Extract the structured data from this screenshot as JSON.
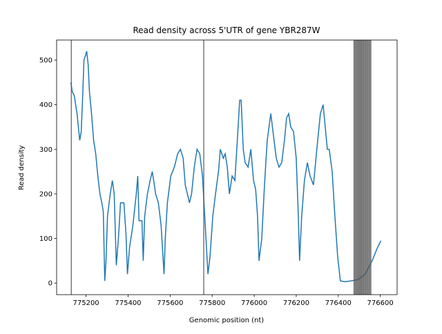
{
  "chart_data": {
    "type": "line",
    "title": "Read density across 5'UTR of gene YBR287W",
    "x_label": "Genomic position (nt)",
    "y_label": "Read density",
    "x": [
      775128,
      775134,
      775144,
      775157,
      775170,
      775177,
      775184,
      775190,
      775197,
      775203,
      775210,
      775216,
      775226,
      775236,
      775246,
      775256,
      775266,
      775275,
      775282,
      775289,
      775295,
      775302,
      775315,
      775325,
      775334,
      775344,
      775354,
      775364,
      775380,
      775390,
      775397,
      775407,
      775423,
      775439,
      775446,
      775452,
      775466,
      775472,
      775479,
      775492,
      775505,
      775515,
      775525,
      775531,
      775544,
      775557,
      775571,
      775577,
      775587,
      775603,
      775620,
      775636,
      775649,
      775662,
      775672,
      775682,
      775692,
      775702,
      775715,
      775728,
      775741,
      775754,
      775767,
      775780,
      775790,
      775803,
      775816,
      775830,
      775839,
      775853,
      775862,
      775872,
      775882,
      775895,
      775908,
      775921,
      775931,
      775938,
      775948,
      775957,
      775971,
      775984,
      775997,
      776007,
      776016,
      776023,
      776036,
      776049,
      776062,
      776079,
      776092,
      776105,
      776118,
      776131,
      776144,
      776154,
      776164,
      776174,
      776187,
      776200,
      776210,
      776216,
      776226,
      776239,
      776253,
      776266,
      776282,
      776298,
      776315,
      776328,
      776338,
      776348,
      776357,
      776371,
      776384,
      776397,
      776410,
      776430,
      776462,
      776495,
      776528,
      776561,
      776587,
      776603
    ],
    "series": [
      {
        "color": "#1f77b4",
        "values": [
          450,
          430,
          420,
          380,
          320,
          340,
          420,
          500,
          510,
          520,
          490,
          430,
          380,
          320,
          290,
          240,
          200,
          180,
          160,
          5,
          50,
          150,
          200,
          230,
          200,
          40,
          100,
          180,
          180,
          110,
          20,
          80,
          130,
          200,
          240,
          140,
          140,
          50,
          150,
          200,
          230,
          250,
          220,
          200,
          180,
          130,
          20,
          100,
          180,
          240,
          260,
          290,
          300,
          280,
          220,
          200,
          180,
          200,
          260,
          300,
          290,
          240,
          130,
          20,
          60,
          150,
          200,
          250,
          300,
          280,
          290,
          260,
          200,
          240,
          230,
          330,
          410,
          410,
          300,
          270,
          260,
          300,
          230,
          210,
          150,
          50,
          100,
          220,
          320,
          380,
          330,
          280,
          260,
          270,
          320,
          370,
          380,
          350,
          340,
          280,
          150,
          50,
          150,
          230,
          270,
          240,
          220,
          300,
          380,
          400,
          350,
          300,
          300,
          250,
          150,
          60,
          5,
          3,
          5,
          8,
          20,
          50,
          80,
          95
        ]
      }
    ],
    "vlines": [
      775130,
      775760,
      776475,
      776480,
      776485,
      776490,
      776495,
      776500,
      776505,
      776510,
      776515,
      776520,
      776525,
      776530,
      776535,
      776540,
      776545,
      776550,
      776555
    ],
    "vline_color": "#555555",
    "xlim": [
      775060,
      776680
    ],
    "ylim": [
      -26,
      545
    ],
    "xticks": [
      775200,
      775400,
      775600,
      775800,
      776000,
      776200,
      776400,
      776600
    ],
    "yticks": [
      0,
      100,
      200,
      300,
      400,
      500
    ]
  }
}
